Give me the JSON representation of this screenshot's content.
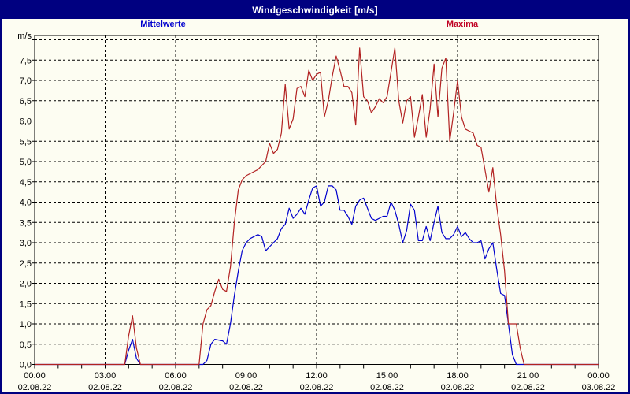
{
  "window": {
    "title": "Windgeschwindigkeit [m/s]",
    "title_bar_color": "#000080",
    "background_color": "#fdfdf2",
    "border_color": "#000080"
  },
  "legend": {
    "mittelwerte": {
      "label": "Mittelwerte",
      "color": "#0000CD"
    },
    "maxima": {
      "label": "Maxima",
      "color": "#C00023"
    }
  },
  "chart_data": {
    "type": "line",
    "title": "Windgeschwindigkeit [m/s]",
    "grid": "dashed",
    "y_axis": {
      "unit_label": "m/s",
      "ylim": [
        0,
        8
      ],
      "tick_step": 0.5,
      "tick_values": [
        0,
        0.5,
        1,
        1.5,
        2,
        2.5,
        3,
        3.5,
        4,
        4.5,
        5,
        5.5,
        6,
        6.5,
        7,
        7.5
      ],
      "tick_labels": [
        "0,0",
        "0,5",
        "1,0",
        "1,5",
        "2,0",
        "2,5",
        "3,0",
        "3,5",
        "4,0",
        "4,5",
        "5,0",
        "5,5",
        "6,0",
        "6,5",
        "7,0",
        "7,5"
      ]
    },
    "x_axis": {
      "total_minutes": 1440,
      "major_tick_minutes": 180,
      "minor_tick_minutes": 60,
      "ticks": [
        {
          "time": "00:00",
          "date": "02.08.22"
        },
        {
          "time": "03:00",
          "date": "02.08.22"
        },
        {
          "time": "06:00",
          "date": "02.08.22"
        },
        {
          "time": "09:00",
          "date": "02.08.22"
        },
        {
          "time": "12:00",
          "date": "02.08.22"
        },
        {
          "time": "15:00",
          "date": "02.08.22"
        },
        {
          "time": "18:00",
          "date": "02.08.22"
        },
        {
          "time": "21:00",
          "date": "02.08.22"
        },
        {
          "time": "00:00",
          "date": "03.08.22"
        }
      ]
    },
    "sample_step_minutes": 10,
    "series": [
      {
        "name": "Mittelwerte",
        "color": "#0000CD",
        "values": [
          0,
          0,
          0,
          0,
          0,
          0,
          0,
          0,
          0,
          0,
          0,
          0,
          0,
          0,
          0,
          0,
          0,
          0,
          0,
          0,
          0,
          0,
          0,
          0,
          0.35,
          0.62,
          0.15,
          0,
          0,
          0,
          0,
          0,
          0,
          0,
          0,
          0,
          0,
          0,
          0,
          0,
          0,
          0,
          0,
          0,
          0.1,
          0.5,
          0.62,
          0.6,
          0.58,
          0.5,
          1.0,
          1.7,
          2.3,
          2.8,
          3.0,
          3.1,
          3.15,
          3.2,
          3.15,
          2.8,
          2.9,
          3.0,
          3.1,
          3.35,
          3.45,
          3.85,
          3.6,
          3.7,
          3.85,
          3.7,
          4.05,
          4.35,
          4.4,
          3.9,
          4.0,
          4.4,
          4.4,
          4.3,
          3.8,
          3.8,
          3.65,
          3.45,
          3.9,
          4.05,
          4.1,
          3.85,
          3.6,
          3.55,
          3.6,
          3.65,
          3.65,
          4.0,
          3.8,
          3.45,
          3.0,
          3.3,
          3.95,
          3.8,
          3.05,
          3.05,
          3.4,
          3.05,
          3.5,
          3.9,
          3.25,
          3.1,
          3.1,
          3.2,
          3.4,
          3.15,
          3.25,
          3.1,
          3.0,
          3.0,
          3.05,
          2.6,
          2.85,
          3.0,
          2.35,
          1.75,
          1.7,
          1.0,
          0.25,
          0,
          0,
          0,
          0,
          0,
          0,
          0,
          0,
          0,
          0,
          0,
          0,
          0,
          0,
          0,
          0,
          0,
          0,
          0,
          0,
          0,
          0
        ]
      },
      {
        "name": "Maxima",
        "color": "#B22222",
        "values": [
          0,
          0,
          0,
          0,
          0,
          0,
          0,
          0,
          0,
          0,
          0,
          0,
          0,
          0,
          0,
          0,
          0,
          0,
          0,
          0,
          0,
          0,
          0,
          0,
          0.7,
          1.2,
          0.4,
          0,
          0,
          0,
          0,
          0,
          0,
          0,
          0,
          0,
          0,
          0,
          0,
          0,
          0,
          0,
          0,
          1.0,
          1.35,
          1.45,
          1.8,
          2.1,
          1.85,
          1.8,
          2.4,
          3.5,
          4.3,
          4.55,
          4.65,
          4.7,
          4.75,
          4.8,
          4.9,
          5.0,
          5.45,
          5.2,
          5.3,
          5.7,
          6.9,
          5.8,
          6.05,
          6.8,
          6.85,
          6.6,
          7.25,
          7.0,
          7.15,
          7.2,
          6.1,
          6.5,
          7.1,
          7.6,
          7.25,
          6.85,
          6.85,
          6.7,
          5.9,
          7.8,
          6.6,
          6.5,
          6.2,
          6.35,
          6.55,
          6.45,
          6.6,
          7.2,
          7.8,
          6.5,
          5.95,
          6.5,
          6.6,
          5.6,
          6.1,
          6.65,
          5.6,
          6.3,
          7.4,
          6.1,
          7.3,
          7.55,
          5.5,
          6.2,
          7.0,
          6.1,
          5.8,
          5.75,
          5.7,
          5.4,
          5.35,
          4.8,
          4.25,
          4.85,
          3.9,
          3.2,
          2.3,
          1.0,
          1.0,
          1.0,
          0.4,
          0,
          0,
          0,
          0,
          0,
          0,
          0,
          0,
          0,
          0,
          0,
          0,
          0,
          0,
          0,
          0,
          0,
          0,
          0,
          0
        ]
      }
    ]
  }
}
